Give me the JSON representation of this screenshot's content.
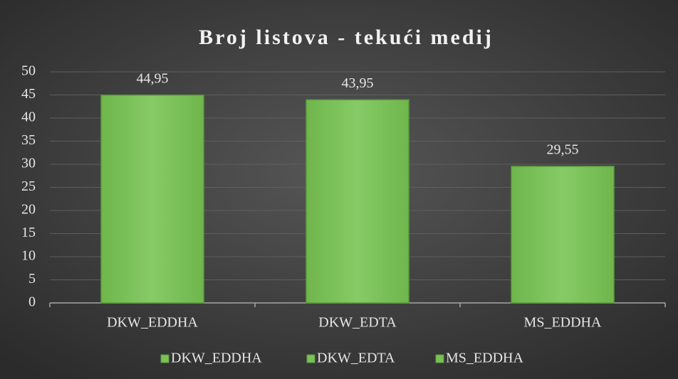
{
  "chart_data": {
    "type": "bar",
    "title": "Broj listova - tekući medij",
    "categories": [
      "DKW_EDDHA",
      "DKW_EDTA",
      "MS_EDDHA"
    ],
    "values": [
      44.95,
      43.95,
      29.55
    ],
    "value_labels": [
      "44,95",
      "43,95",
      "29,55"
    ],
    "color": "#7ac159",
    "ylim": [
      0,
      50
    ],
    "yticks": [
      0,
      5,
      10,
      15,
      20,
      25,
      30,
      35,
      40,
      45,
      50
    ],
    "grid": true,
    "legend": "bottom"
  }
}
